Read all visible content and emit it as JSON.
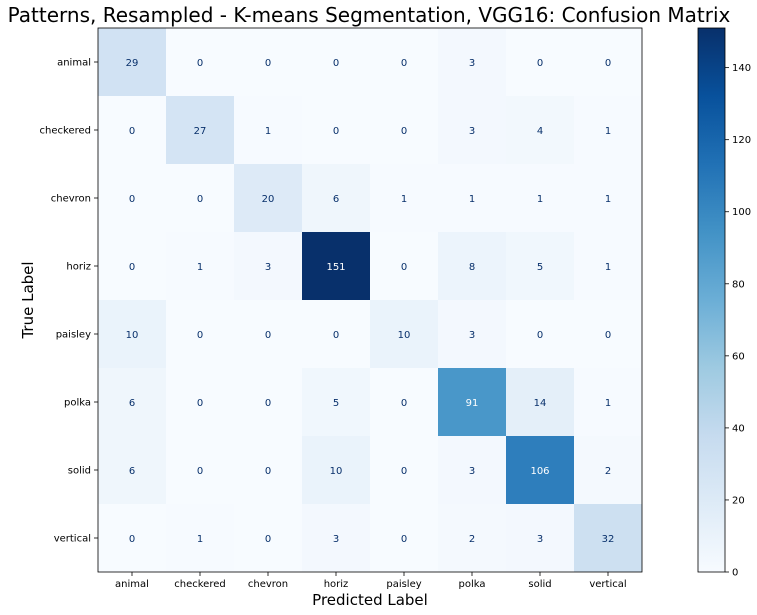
{
  "chart_data": {
    "type": "heatmap",
    "title": "Patterns, Resampled - K-means Segmentation, VGG16: Confusion Matrix",
    "xlabel": "Predicted Label",
    "ylabel": "True Label",
    "x_categories": [
      "animal",
      "checkered",
      "chevron",
      "horiz",
      "paisley",
      "polka",
      "solid",
      "vertical"
    ],
    "y_categories": [
      "animal",
      "checkered",
      "chevron",
      "horiz",
      "paisley",
      "polka",
      "solid",
      "vertical"
    ],
    "values": [
      [
        29,
        0,
        0,
        0,
        0,
        3,
        0,
        0
      ],
      [
        0,
        27,
        1,
        0,
        0,
        3,
        4,
        1
      ],
      [
        0,
        0,
        20,
        6,
        1,
        1,
        1,
        1
      ],
      [
        0,
        1,
        3,
        151,
        0,
        8,
        5,
        1
      ],
      [
        10,
        0,
        0,
        0,
        10,
        3,
        0,
        0
      ],
      [
        6,
        0,
        0,
        5,
        0,
        91,
        14,
        1
      ],
      [
        6,
        0,
        0,
        10,
        0,
        3,
        106,
        2
      ],
      [
        0,
        1,
        0,
        3,
        0,
        2,
        3,
        32
      ]
    ],
    "colormap": "Blues",
    "colorbar": {
      "min": 0,
      "max": 151,
      "ticks": [
        0,
        20,
        40,
        60,
        80,
        100,
        120,
        140
      ]
    }
  }
}
